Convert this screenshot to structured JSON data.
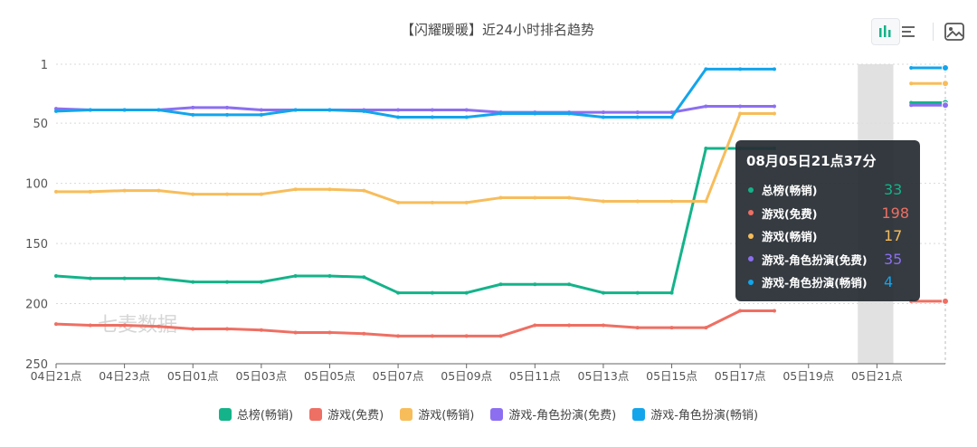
{
  "chart_data": {
    "type": "line",
    "title": "【闪耀暖暖】近24小时排名趋势",
    "y_axis": {
      "inverse": true,
      "min": 1,
      "max": 250,
      "ticks": [
        1,
        50,
        100,
        150,
        200,
        250
      ]
    },
    "grid": true,
    "x_labels": [
      "04日21点",
      "04日23点",
      "05日01点",
      "05日03点",
      "05日05点",
      "05日07点",
      "05日09点",
      "05日11点",
      "05日13点",
      "05日15点",
      "05日17点",
      "05日19点",
      "05日21点"
    ],
    "series": [
      {
        "name": "总榜(畅销)",
        "color": "#14b389",
        "values": [
          177,
          179,
          179,
          179,
          182,
          182,
          182,
          177,
          177,
          178,
          191,
          191,
          191,
          184,
          184,
          184,
          191,
          191,
          191,
          71,
          71,
          71,
          null,
          null,
          null,
          33,
          33
        ]
      },
      {
        "name": "游戏(免费)",
        "color": "#ee6f63",
        "values": [
          217,
          218,
          218,
          219,
          221,
          221,
          222,
          224,
          224,
          225,
          227,
          227,
          227,
          227,
          218,
          218,
          218,
          220,
          220,
          220,
          206,
          206,
          null,
          null,
          null,
          198,
          198
        ]
      },
      {
        "name": "游戏(畅销)",
        "color": "#f7bd5b",
        "values": [
          107,
          107,
          106,
          106,
          109,
          109,
          109,
          105,
          105,
          106,
          116,
          116,
          116,
          112,
          112,
          112,
          115,
          115,
          115,
          115,
          42,
          42,
          null,
          null,
          null,
          17,
          17
        ]
      },
      {
        "name": "游戏-角色扮演(免费)",
        "color": "#8c6ff0",
        "values": [
          38,
          39,
          39,
          39,
          37,
          37,
          39,
          39,
          39,
          39,
          39,
          39,
          39,
          41,
          41,
          41,
          41,
          41,
          41,
          36,
          36,
          36,
          null,
          null,
          null,
          35,
          35
        ]
      },
      {
        "name": "游戏-角色扮演(畅销)",
        "color": "#12a5ec",
        "values": [
          40,
          39,
          39,
          39,
          43,
          43,
          43,
          39,
          39,
          40,
          45,
          45,
          45,
          42,
          42,
          42,
          45,
          45,
          45,
          5,
          5,
          5,
          null,
          null,
          null,
          4,
          4
        ]
      }
    ],
    "highlight_band": "05日19点"
  },
  "toolbar": {
    "icons": [
      "bar-chart-icon",
      "list-icon",
      "image-icon",
      "download-icon"
    ]
  },
  "tooltip": {
    "title": "08月05日21点37分",
    "rows": [
      {
        "name": "总榜(畅销)",
        "value": "33",
        "color": "#14b389"
      },
      {
        "name": "游戏(免费)",
        "value": "198",
        "color": "#ee6f63"
      },
      {
        "name": "游戏(畅销)",
        "value": "17",
        "color": "#f7bd5b"
      },
      {
        "name": "游戏-角色扮演(免费)",
        "value": "35",
        "color": "#8c6ff0"
      },
      {
        "name": "游戏-角色扮演(畅销)",
        "value": "4",
        "color": "#12a5ec"
      }
    ]
  },
  "watermark": "七麦数据"
}
